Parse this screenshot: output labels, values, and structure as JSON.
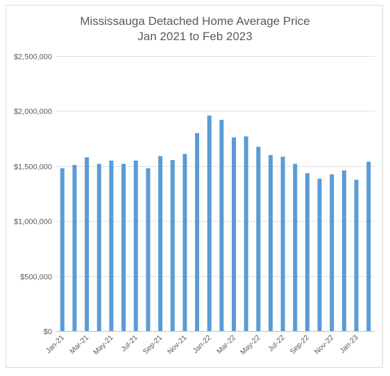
{
  "chart_data": {
    "type": "bar",
    "title": "Mississauga Detached Home Average Price",
    "subtitle": "Jan 2021 to Feb 2023",
    "xlabel": "",
    "ylabel": "",
    "ylim": [
      0,
      2500000
    ],
    "y_ticks": [
      0,
      500000,
      1000000,
      1500000,
      2000000,
      2500000
    ],
    "y_tick_labels": [
      "$0",
      "$500,000",
      "$1,000,000",
      "$1,500,000",
      "$2,000,000",
      "$2,500,000"
    ],
    "grid": true,
    "categories": [
      "Jan-21",
      "Feb-21",
      "Mar-21",
      "Apr-21",
      "May-21",
      "Jun-21",
      "Jul-21",
      "Aug-21",
      "Sep-21",
      "Oct-21",
      "Nov-21",
      "Dec-21",
      "Jan-22",
      "Feb-22",
      "Mar-22",
      "Apr-22",
      "May-22",
      "Jun-22",
      "Jul-22",
      "Aug-22",
      "Sep-22",
      "Oct-22",
      "Nov-22",
      "Dec-22",
      "Jan-23",
      "Feb-23"
    ],
    "x_tick_labels": [
      "Jan-21",
      "Mar-21",
      "May-21",
      "Jul-21",
      "Sep-21",
      "Nov-21",
      "Jan-22",
      "Mar-22",
      "May-22",
      "Jul-22",
      "Sep-22",
      "Nov-22",
      "Jan-23"
    ],
    "values": [
      1480000,
      1510000,
      1580000,
      1520000,
      1550000,
      1520000,
      1550000,
      1480000,
      1590000,
      1555000,
      1610000,
      1800000,
      1960000,
      1920000,
      1760000,
      1770000,
      1675000,
      1600000,
      1585000,
      1520000,
      1435000,
      1385000,
      1425000,
      1460000,
      1375000,
      1540000
    ],
    "bar_color": "#5b9bd5"
  }
}
